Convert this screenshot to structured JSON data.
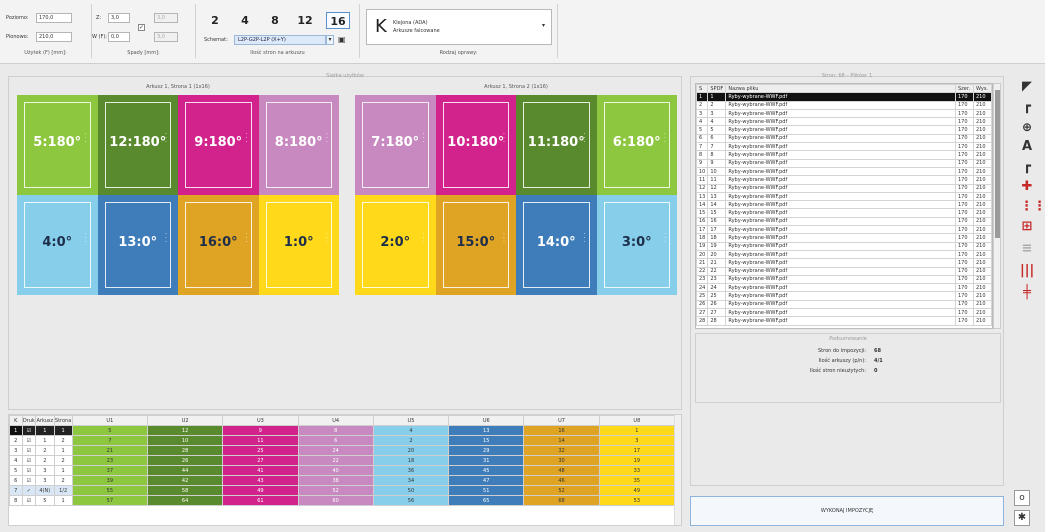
{
  "toolbar": {
    "usable": {
      "horiz_label": "Poziomo:",
      "horiz_value": "170,0",
      "vert_label": "Pionowo:",
      "vert_value": "210,0",
      "caption": "Użytek (F) [mm]:"
    },
    "bleeds": {
      "z_label": "Z:",
      "z_value": "3,0",
      "w_label": "W (F):",
      "w_value": "0,0",
      "r_value": "3,0",
      "d_value": "3,0",
      "caption": "Spady [mm]:"
    },
    "pages": {
      "counts": [
        "2",
        "4",
        "8",
        "12",
        "16"
      ],
      "selected": "16",
      "schema_label": "Schemat:",
      "schema_value": "L2P-G2P-L2P (X+Y)",
      "caption": "Ilość stron na arkuszu"
    },
    "binding": {
      "letter": "K",
      "line1": "Klejona (ADA)",
      "line2": "Arkusze falcowane",
      "caption": "Rodzaj oprawy:"
    }
  },
  "sheets": {
    "title": "Siatka użytków",
    "sheet1": {
      "caption": "Arkusz 1, Strona 1 (1x16)",
      "top": [
        {
          "label": "5:180°",
          "color": "#8dc63f"
        },
        {
          "label": "12:180°",
          "color": "#5a8a2e"
        },
        {
          "label": "9:180°",
          "color": "#d2238c"
        },
        {
          "label": "8:180°",
          "color": "#c889c0"
        }
      ],
      "bottom": [
        {
          "label": "4:0°",
          "color": "#87ceeb"
        },
        {
          "label": "13:0°",
          "color": "#3f7dba"
        },
        {
          "label": "16:0°",
          "color": "#e0a424"
        },
        {
          "label": "1:0°",
          "color": "#ffd91a"
        }
      ]
    },
    "sheet2": {
      "caption": "Arkusz 1, Strona 2 (1x16)",
      "top": [
        {
          "label": "7:180°",
          "color": "#c889c0"
        },
        {
          "label": "10:180°",
          "color": "#d2238c"
        },
        {
          "label": "11:180°",
          "color": "#5a8a2e"
        },
        {
          "label": "6:180°",
          "color": "#8dc63f"
        }
      ],
      "bottom": [
        {
          "label": "2:0°",
          "color": "#ffd91a"
        },
        {
          "label": "15:0°",
          "color": "#e0a424"
        },
        {
          "label": "14:0°",
          "color": "#3f7dba"
        },
        {
          "label": "3:0°",
          "color": "#87ceeb"
        }
      ]
    }
  },
  "grid_table": {
    "headers": [
      "K",
      "Druk",
      "Arkusz",
      "Strona",
      "U1",
      "U2",
      "U3",
      "U4",
      "U5",
      "U6",
      "U7",
      "U8"
    ],
    "col_colors": [
      "#8dc63f",
      "#5a8a2e",
      "#d2238c",
      "#c889c0",
      "#87ceeb",
      "#3f7dba",
      "#e0a424",
      "#ffd91a"
    ],
    "rows": [
      {
        "k": "1",
        "druk": "☑",
        "arkusz": "1",
        "strona": "1",
        "u": [
          "5",
          "12",
          "9",
          "8",
          "4",
          "13",
          "16",
          "1"
        ]
      },
      {
        "k": "2",
        "druk": "☑",
        "arkusz": "1",
        "strona": "2",
        "u": [
          "7",
          "10",
          "11",
          "6",
          "2",
          "15",
          "14",
          "3"
        ]
      },
      {
        "k": "3",
        "druk": "☑",
        "arkusz": "2",
        "strona": "1",
        "u": [
          "21",
          "28",
          "25",
          "24",
          "20",
          "29",
          "32",
          "17"
        ]
      },
      {
        "k": "4",
        "druk": "☑",
        "arkusz": "2",
        "strona": "2",
        "u": [
          "23",
          "26",
          "27",
          "22",
          "18",
          "31",
          "30",
          "19"
        ]
      },
      {
        "k": "5",
        "druk": "☑",
        "arkusz": "3",
        "strona": "1",
        "u": [
          "37",
          "44",
          "41",
          "40",
          "36",
          "45",
          "48",
          "33"
        ]
      },
      {
        "k": "6",
        "druk": "☑",
        "arkusz": "3",
        "strona": "2",
        "u": [
          "39",
          "42",
          "43",
          "38",
          "34",
          "47",
          "46",
          "35"
        ]
      },
      {
        "k": "7",
        "druk": "✓",
        "arkusz": "4(N)",
        "strona": "1/2",
        "u": [
          "55",
          "58",
          "49",
          "52",
          "50",
          "51",
          "52",
          "49"
        ]
      },
      {
        "k": "8",
        "druk": "☑",
        "arkusz": "5",
        "strona": "1",
        "u": [
          "57",
          "64",
          "61",
          "60",
          "56",
          "65",
          "68",
          "53"
        ]
      }
    ]
  },
  "files": {
    "title": "Stron: 68 – Plików: 1",
    "headers": [
      "S",
      "SPDF",
      "Nazwa pliku",
      "Szer.",
      "Wys."
    ],
    "rows": [
      [
        "1",
        "1",
        "Ryby-wybrane-WWF.pdf",
        "170",
        "210"
      ],
      [
        "2",
        "2",
        "Ryby-wybrane-WWF.pdf",
        "170",
        "210"
      ],
      [
        "3",
        "3",
        "Ryby-wybrane-WWF.pdf",
        "170",
        "210"
      ],
      [
        "4",
        "4",
        "Ryby-wybrane-WWF.pdf",
        "170",
        "210"
      ],
      [
        "5",
        "5",
        "Ryby-wybrane-WWF.pdf",
        "170",
        "210"
      ],
      [
        "6",
        "6",
        "Ryby-wybrane-WWF.pdf",
        "170",
        "210"
      ],
      [
        "7",
        "7",
        "Ryby-wybrane-WWF.pdf",
        "170",
        "210"
      ],
      [
        "8",
        "8",
        "Ryby-wybrane-WWF.pdf",
        "170",
        "210"
      ],
      [
        "9",
        "9",
        "Ryby-wybrane-WWF.pdf",
        "170",
        "210"
      ],
      [
        "10",
        "10",
        "Ryby-wybrane-WWF.pdf",
        "170",
        "210"
      ],
      [
        "11",
        "11",
        "Ryby-wybrane-WWF.pdf",
        "170",
        "210"
      ],
      [
        "12",
        "12",
        "Ryby-wybrane-WWF.pdf",
        "170",
        "210"
      ],
      [
        "13",
        "13",
        "Ryby-wybrane-WWF.pdf",
        "170",
        "210"
      ],
      [
        "14",
        "14",
        "Ryby-wybrane-WWF.pdf",
        "170",
        "210"
      ],
      [
        "15",
        "15",
        "Ryby-wybrane-WWF.pdf",
        "170",
        "210"
      ],
      [
        "16",
        "16",
        "Ryby-wybrane-WWF.pdf",
        "170",
        "210"
      ],
      [
        "17",
        "17",
        "Ryby-wybrane-WWF.pdf",
        "170",
        "210"
      ],
      [
        "18",
        "18",
        "Ryby-wybrane-WWF.pdf",
        "170",
        "210"
      ],
      [
        "19",
        "19",
        "Ryby-wybrane-WWF.pdf",
        "170",
        "210"
      ],
      [
        "20",
        "20",
        "Ryby-wybrane-WWF.pdf",
        "170",
        "210"
      ],
      [
        "21",
        "21",
        "Ryby-wybrane-WWF.pdf",
        "170",
        "210"
      ],
      [
        "22",
        "22",
        "Ryby-wybrane-WWF.pdf",
        "170",
        "210"
      ],
      [
        "23",
        "23",
        "Ryby-wybrane-WWF.pdf",
        "170",
        "210"
      ],
      [
        "24",
        "24",
        "Ryby-wybrane-WWF.pdf",
        "170",
        "210"
      ],
      [
        "25",
        "25",
        "Ryby-wybrane-WWF.pdf",
        "170",
        "210"
      ],
      [
        "26",
        "26",
        "Ryby-wybrane-WWF.pdf",
        "170",
        "210"
      ],
      [
        "27",
        "27",
        "Ryby-wybrane-WWF.pdf",
        "170",
        "210"
      ],
      [
        "28",
        "28",
        "Ryby-wybrane-WWF.pdf",
        "170",
        "210"
      ]
    ]
  },
  "summary": {
    "title": "Podsumowanie",
    "lines": [
      {
        "label": "Stron do impozycji:",
        "value": "68"
      },
      {
        "label": "Ilość arkuszy (p/n):",
        "value": "4/1"
      },
      {
        "label": "Ilość stron nieużytych:",
        "value": "0"
      }
    ]
  },
  "execute_button": "WYKONAJ IMPOZYCJĘ",
  "right_tools": [
    "corner-mark-icon",
    "corner-mark-small-icon",
    "crosshair-icon",
    "text-icon",
    "fold-mark-icon",
    "cut-mark-icon",
    "column-split-icon",
    "grid-icon",
    "lines-icon",
    "bars-icon",
    "split-icon"
  ],
  "bottom_tools": [
    "info-icon",
    "settings-icon"
  ]
}
